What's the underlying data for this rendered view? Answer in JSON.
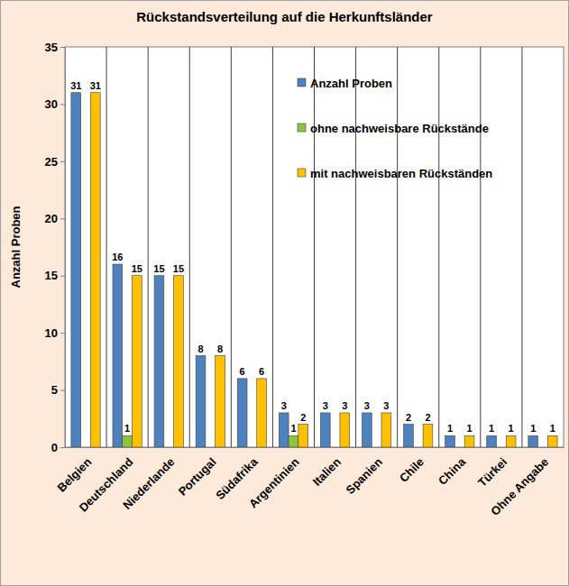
{
  "chart_data": {
    "type": "bar",
    "title": "Rückstandsverteilung auf die Herkunftsländer",
    "y_label": "Anzahl Proben",
    "categories": [
      "Belgien",
      "Deutschland",
      "Niederlande",
      "Portugal",
      "Südafrika",
      "Argentinien",
      "Italien",
      "Spanien",
      "Chile",
      "China",
      "Türkei",
      "Ohne Angabe"
    ],
    "series": [
      {
        "name": "Anzahl Proben",
        "color": "#4f81bd",
        "values": [
          31,
          16,
          15,
          8,
          6,
          3,
          3,
          3,
          2,
          1,
          1,
          1
        ]
      },
      {
        "name": "ohne nachweisbare Rückstände",
        "color": "#8cc63f",
        "values": [
          null,
          1,
          null,
          null,
          null,
          1,
          null,
          null,
          null,
          null,
          null,
          null
        ]
      },
      {
        "name": "mit nachweisbaren Rückständen",
        "color": "#ffc000",
        "values": [
          31,
          15,
          15,
          8,
          6,
          2,
          3,
          3,
          2,
          1,
          1,
          1
        ]
      }
    ],
    "ylim": [
      0,
      35
    ],
    "yticks": [
      0,
      5,
      10,
      15,
      20,
      25,
      30,
      35
    ],
    "grid": true,
    "legend": "top-right",
    "data_labels": true
  }
}
